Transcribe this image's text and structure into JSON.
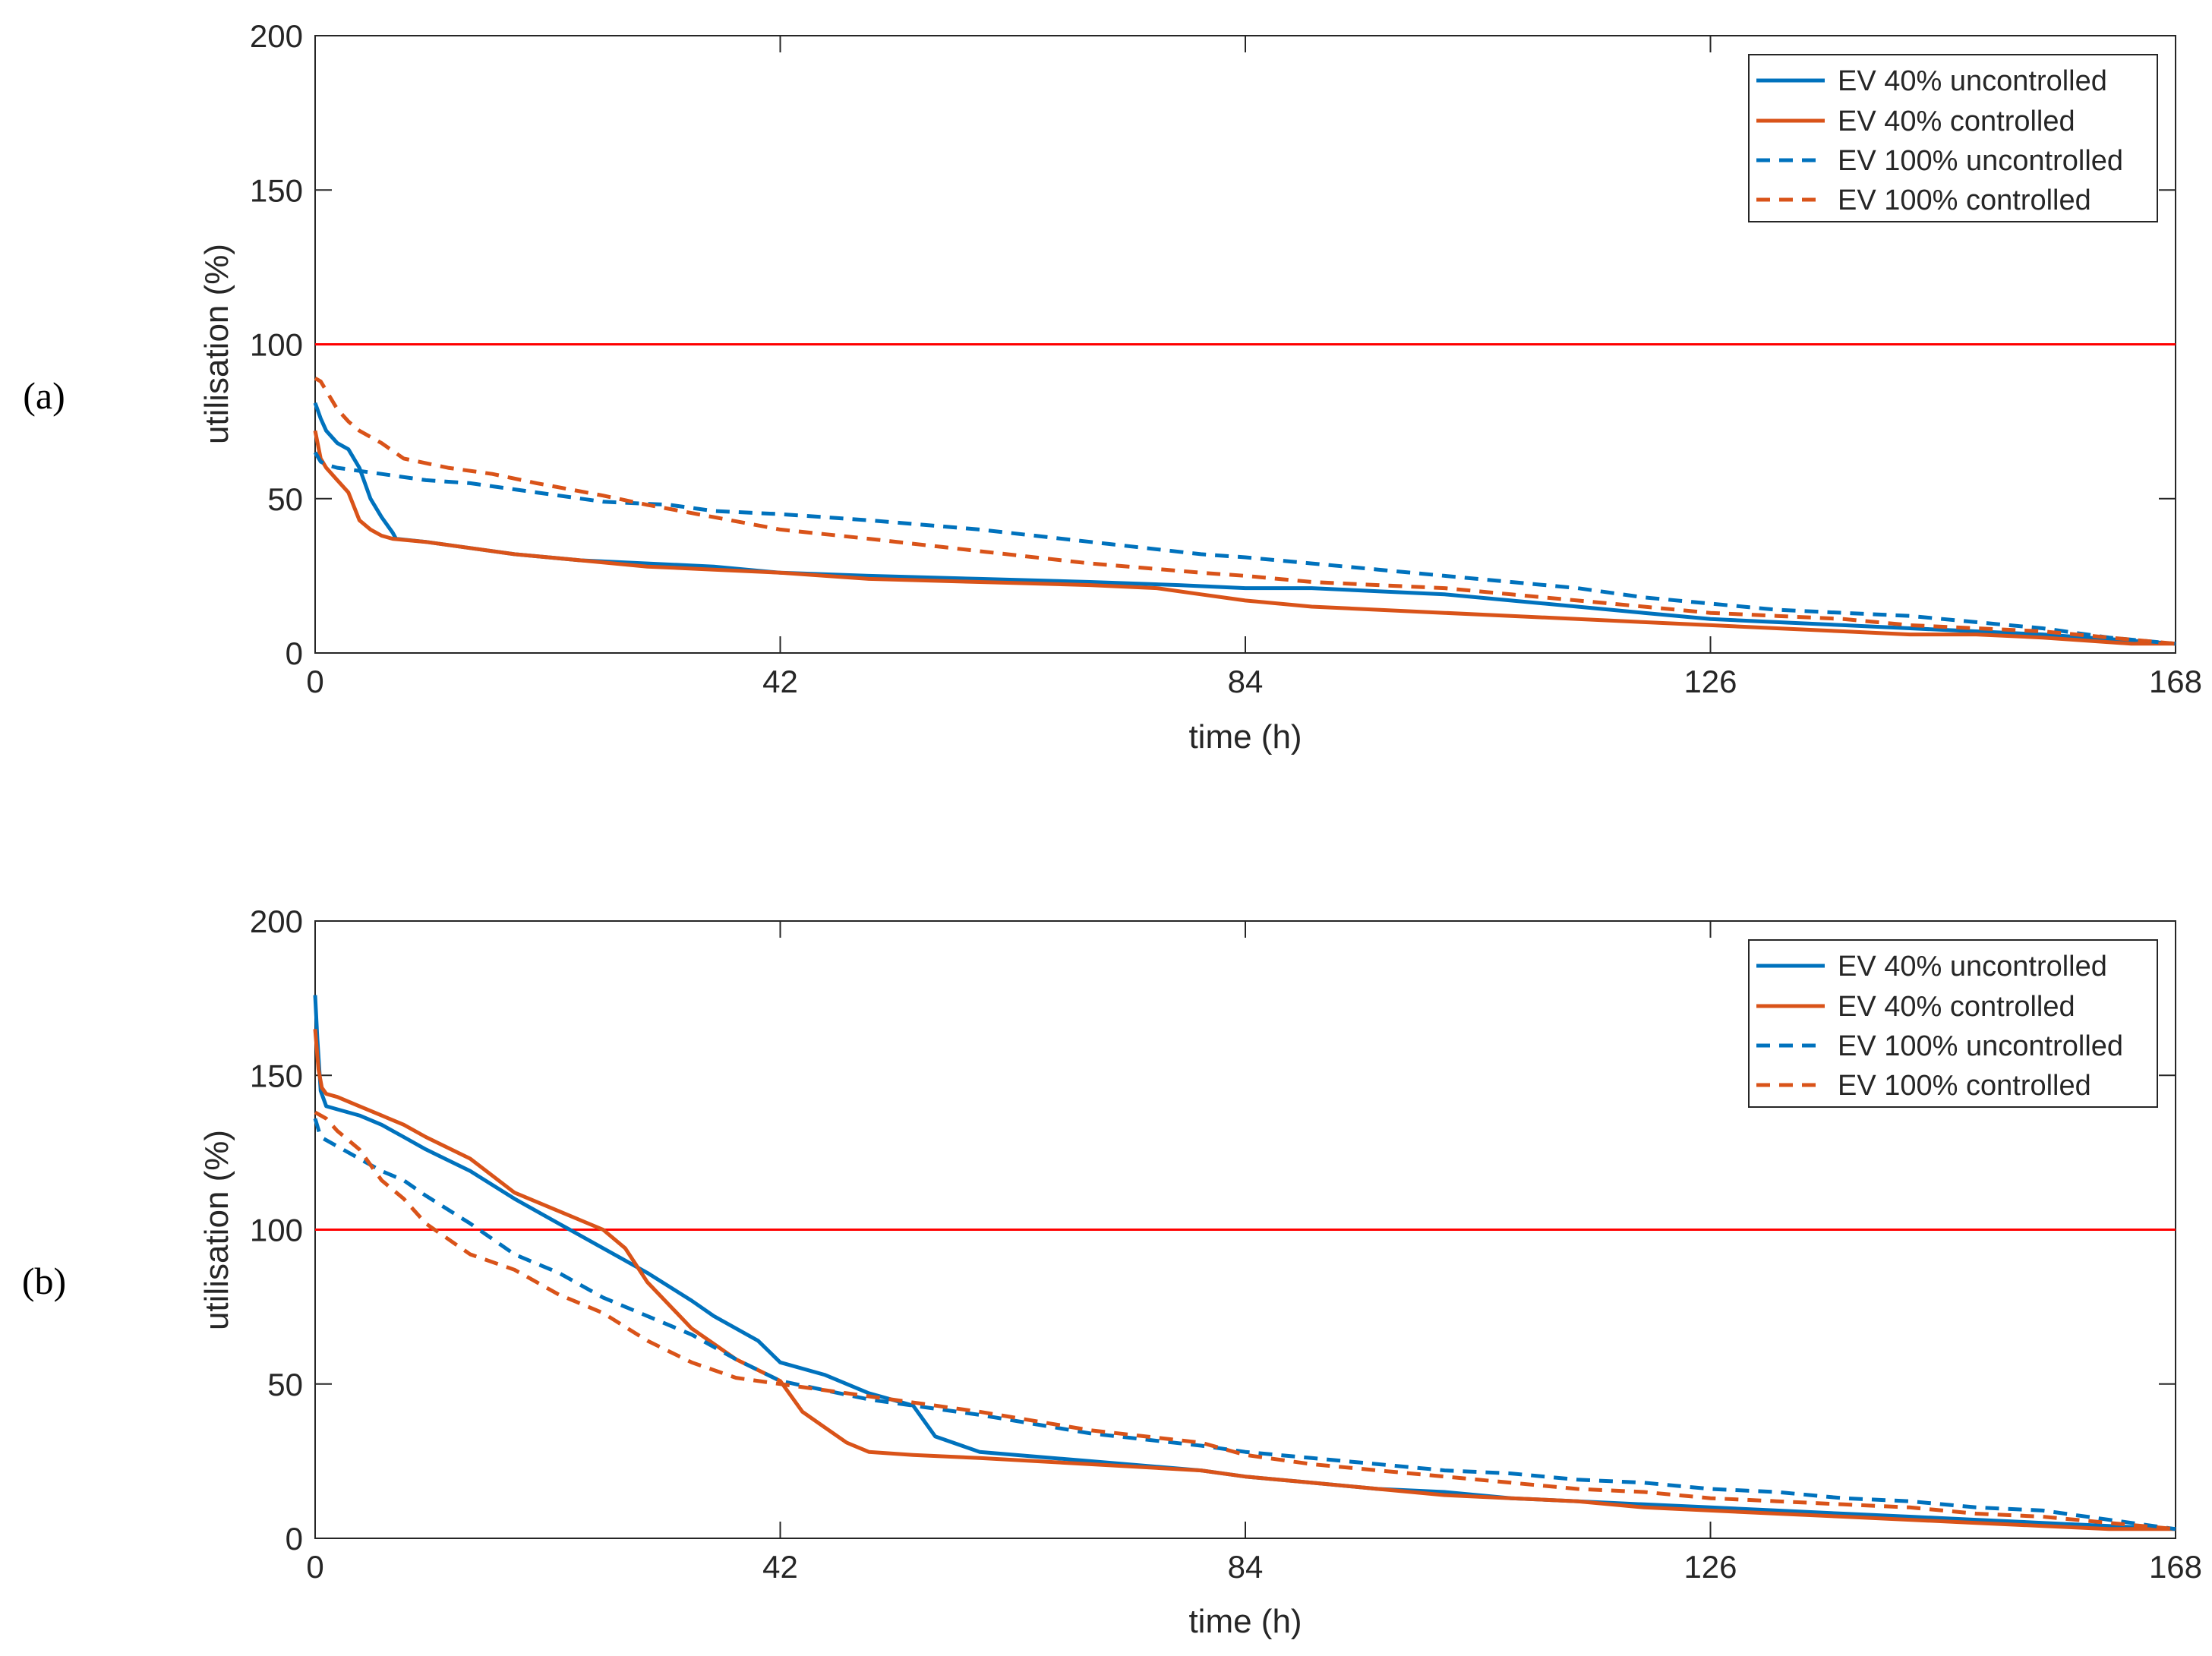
{
  "chart_data": [
    {
      "panel": "(a)",
      "type": "line",
      "xlabel": "time (h)",
      "ylabel": "utilisation (%)",
      "xlim": [
        0,
        168
      ],
      "ylim": [
        0,
        200
      ],
      "xticks": [
        0,
        42,
        84,
        126,
        168
      ],
      "yticks": [
        0,
        50,
        100,
        150,
        200
      ],
      "legend_position": "top-right",
      "reference_line": {
        "y": 100,
        "color": "#ff0000"
      },
      "series": [
        {
          "name": "EV 40% uncontrolled",
          "color": "#0072bd",
          "style": "solid",
          "x": [
            0,
            0.5,
            1,
            2,
            3,
            4,
            5,
            6,
            7,
            7.3,
            10,
            14,
            18,
            24,
            30,
            36,
            42,
            50,
            60,
            70,
            78,
            84,
            90,
            96,
            102,
            108,
            114,
            120,
            126,
            132,
            138,
            144,
            150,
            156,
            160,
            164,
            168
          ],
          "y": [
            81,
            76,
            72,
            68,
            66,
            60,
            50,
            44,
            39,
            37,
            36,
            34,
            32,
            30,
            29,
            28,
            26,
            25,
            24,
            23,
            22,
            21,
            21,
            20,
            19,
            17,
            15,
            13,
            11,
            10,
            9,
            8,
            7,
            6,
            5,
            4,
            3
          ]
        },
        {
          "name": "EV 40% controlled",
          "color": "#d95319",
          "style": "solid",
          "x": [
            0,
            0.5,
            1,
            2,
            3,
            4,
            5,
            6,
            7,
            10,
            14,
            18,
            24,
            30,
            36,
            42,
            50,
            60,
            70,
            76,
            80,
            84,
            90,
            96,
            102,
            108,
            114,
            120,
            126,
            132,
            138,
            144,
            150,
            156,
            160,
            164,
            168
          ],
          "y": [
            72,
            63,
            60,
            56,
            52,
            43,
            40,
            38,
            37,
            36,
            34,
            32,
            30,
            28,
            27,
            26,
            24,
            23,
            22,
            21,
            19,
            17,
            15,
            14,
            13,
            12,
            11,
            10,
            9,
            8,
            7,
            6,
            6,
            5,
            4,
            3,
            3
          ]
        },
        {
          "name": "EV 100% uncontrolled",
          "color": "#0072bd",
          "style": "dashed",
          "x": [
            0,
            0.5,
            1,
            2,
            4,
            6,
            10,
            14,
            20,
            26,
            32,
            36,
            42,
            50,
            60,
            70,
            80,
            84,
            90,
            96,
            102,
            108,
            114,
            120,
            126,
            132,
            138,
            144,
            150,
            156,
            162,
            168
          ],
          "y": [
            65,
            62,
            61,
            60,
            59,
            58,
            56,
            55,
            52,
            49,
            48,
            46,
            45,
            43,
            40,
            36,
            32,
            31,
            29,
            27,
            25,
            23,
            21,
            18,
            16,
            14,
            13,
            12,
            10,
            8,
            5,
            3
          ]
        },
        {
          "name": "EV 100% controlled",
          "color": "#d95319",
          "style": "dashed",
          "x": [
            0,
            0.5,
            1,
            2,
            3,
            4,
            6,
            8,
            12,
            16,
            20,
            26,
            30,
            36,
            42,
            50,
            60,
            70,
            80,
            84,
            90,
            96,
            102,
            108,
            114,
            120,
            126,
            132,
            138,
            144,
            150,
            156,
            162,
            168
          ],
          "y": [
            89,
            88,
            85,
            79,
            75,
            72,
            68,
            63,
            60,
            58,
            55,
            51,
            48,
            44,
            40,
            37,
            33,
            29,
            26,
            25,
            23,
            22,
            21,
            19,
            17,
            15,
            13,
            12,
            11,
            9,
            8,
            7,
            5,
            3
          ]
        }
      ]
    },
    {
      "panel": "(b)",
      "type": "line",
      "xlabel": "time (h)",
      "ylabel": "utilisation (%)",
      "xlim": [
        0,
        168
      ],
      "ylim": [
        0,
        200
      ],
      "xticks": [
        0,
        42,
        84,
        126,
        168
      ],
      "yticks": [
        0,
        50,
        100,
        150,
        200
      ],
      "legend_position": "top-right",
      "reference_line": {
        "y": 100,
        "color": "#ff0000"
      },
      "series": [
        {
          "name": "EV 40% uncontrolled",
          "color": "#0072bd",
          "style": "solid",
          "x": [
            0,
            0.2,
            0.5,
            1,
            2,
            4,
            6,
            8,
            10,
            14,
            18,
            22,
            26,
            30,
            34,
            36,
            40,
            42,
            46,
            50,
            54,
            56,
            60,
            70,
            80,
            84,
            90,
            96,
            102,
            108,
            114,
            120,
            126,
            132,
            138,
            144,
            150,
            156,
            162,
            168
          ],
          "y": [
            176,
            162,
            145,
            140,
            139,
            137,
            134,
            130,
            126,
            119,
            110,
            102,
            94,
            86,
            77,
            72,
            64,
            57,
            53,
            47,
            43,
            33,
            28,
            25,
            22,
            20,
            18,
            16,
            15,
            13,
            12,
            11,
            10,
            9,
            8,
            7,
            6,
            5,
            4,
            3
          ]
        },
        {
          "name": "EV 40% controlled",
          "color": "#d95319",
          "style": "solid",
          "x": [
            0,
            0.3,
            0.6,
            1,
            2,
            4,
            6,
            8,
            10,
            14,
            18,
            22,
            26,
            28,
            30,
            34,
            38,
            42,
            44,
            46,
            48,
            50,
            54,
            60,
            70,
            80,
            84,
            90,
            96,
            102,
            108,
            114,
            120,
            126,
            132,
            138,
            144,
            150,
            156,
            162,
            168
          ],
          "y": [
            165,
            152,
            146,
            144,
            143,
            140,
            137,
            134,
            130,
            123,
            112,
            106,
            100,
            94,
            83,
            68,
            58,
            51,
            41,
            36,
            31,
            28,
            27,
            26,
            24,
            22,
            20,
            18,
            16,
            14,
            13,
            12,
            10,
            9,
            8,
            7,
            6,
            5,
            4,
            3,
            3
          ]
        },
        {
          "name": "EV 100% uncontrolled",
          "color": "#0072bd",
          "style": "dashed",
          "x": [
            0,
            0.5,
            1,
            2,
            4,
            6,
            8,
            10,
            14,
            18,
            22,
            26,
            30,
            34,
            38,
            42,
            50,
            60,
            70,
            80,
            84,
            90,
            96,
            102,
            108,
            114,
            120,
            126,
            132,
            138,
            144,
            150,
            156,
            162,
            168
          ],
          "y": [
            136,
            130,
            129,
            127,
            123,
            119,
            116,
            111,
            102,
            92,
            86,
            78,
            72,
            66,
            58,
            51,
            45,
            40,
            34,
            30,
            28,
            26,
            24,
            22,
            21,
            19,
            18,
            16,
            15,
            13,
            12,
            10,
            9,
            6,
            3
          ]
        },
        {
          "name": "EV 100% controlled",
          "color": "#d95319",
          "style": "dashed",
          "x": [
            0,
            0.5,
            1,
            2,
            4,
            6,
            8,
            10,
            14,
            18,
            22,
            26,
            30,
            34,
            38,
            42,
            50,
            60,
            70,
            80,
            84,
            90,
            96,
            102,
            108,
            114,
            120,
            126,
            132,
            138,
            144,
            150,
            156,
            162,
            168
          ],
          "y": [
            138,
            137,
            136,
            132,
            126,
            116,
            110,
            102,
            92,
            87,
            79,
            73,
            64,
            57,
            52,
            50,
            46,
            41,
            35,
            31,
            27,
            24,
            22,
            20,
            18,
            16,
            15,
            13,
            12,
            11,
            10,
            8,
            7,
            5,
            3
          ]
        }
      ]
    }
  ]
}
